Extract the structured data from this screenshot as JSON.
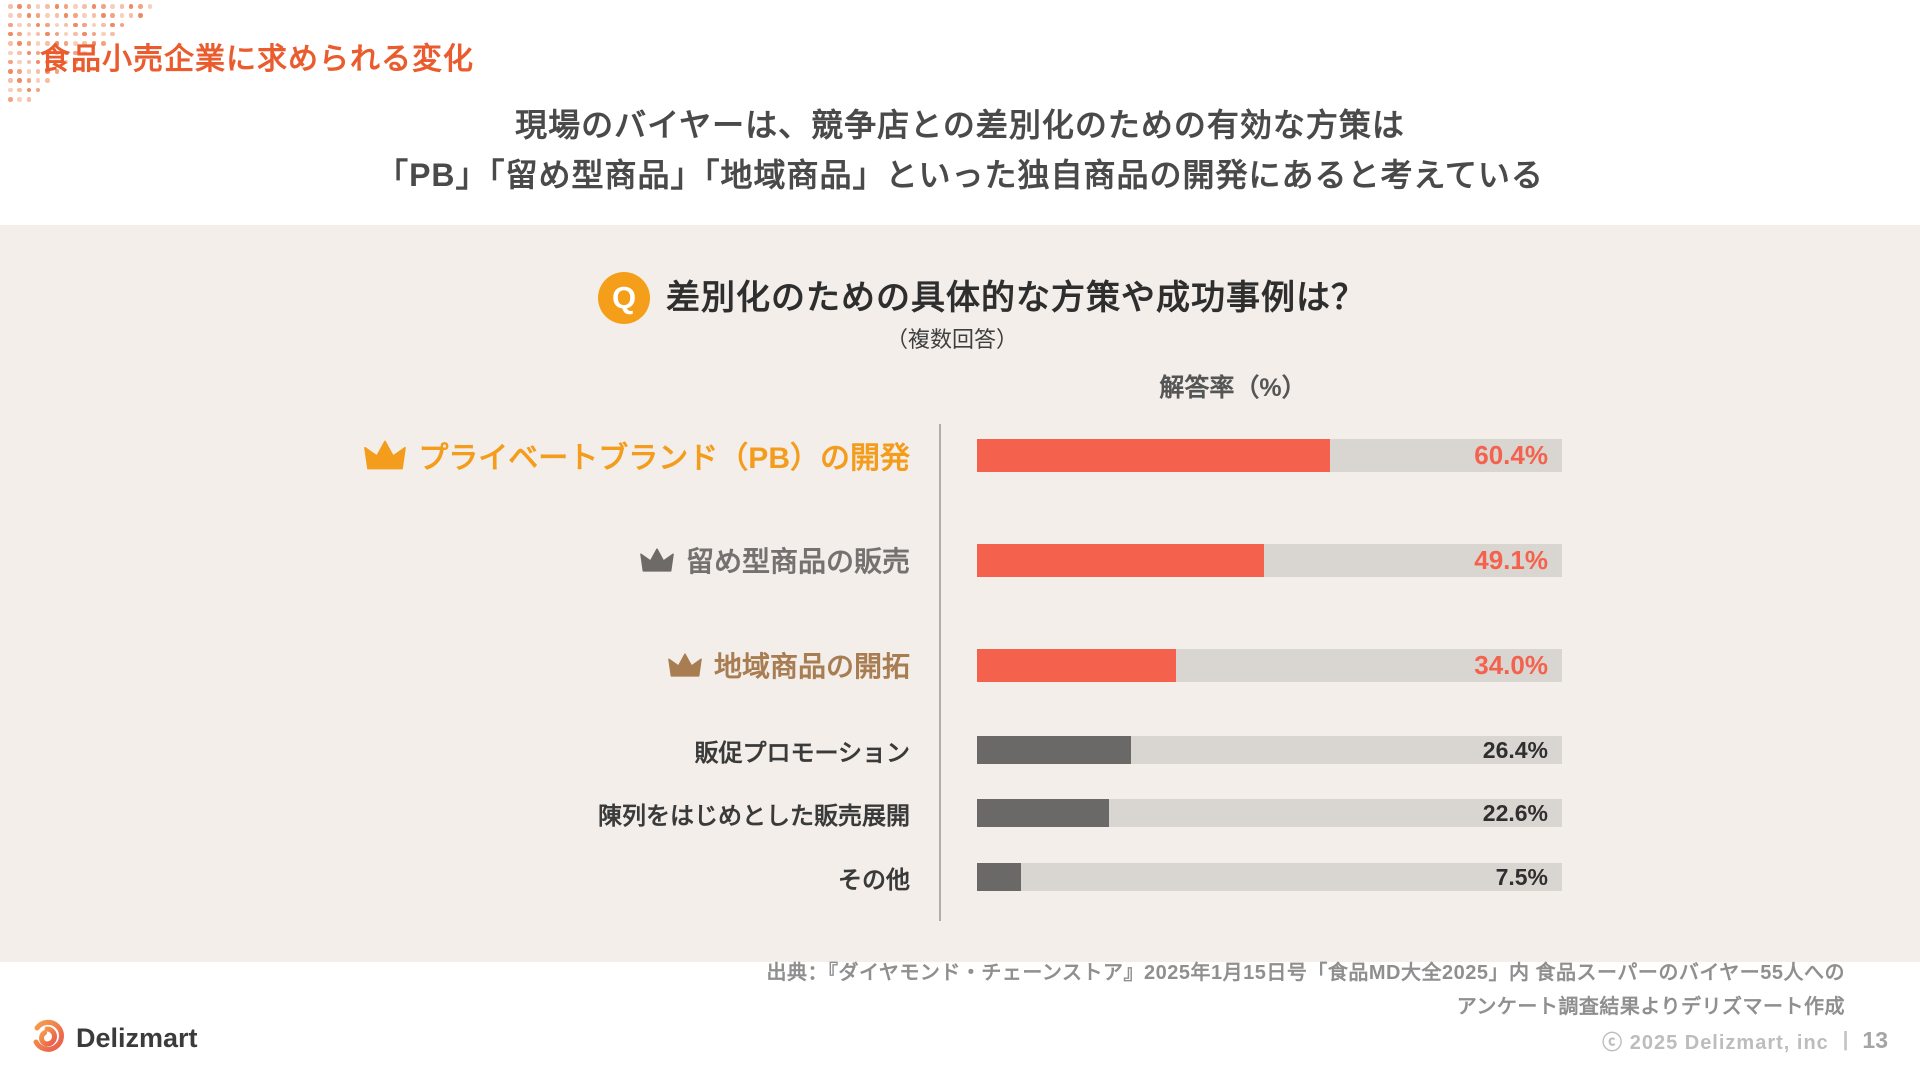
{
  "slide": {
    "kicker": "食品小売企業に求められる変化",
    "headline": [
      "現場のバイヤーは、競争店との差別化のための有効な方策は",
      "「PB」「留め型商品」「地域商品」といった独自商品の開発にあると考えている"
    ]
  },
  "question": {
    "badge": "Q",
    "text": "差別化のための具体的な方策や成功事例は？",
    "note": "（複数回答）"
  },
  "chart_data": {
    "type": "bar",
    "orientation": "horizontal",
    "title": "差別化のための具体的な方策や成功事例は？",
    "axis_label": "解答率（%）",
    "xlim": [
      0,
      100
    ],
    "grid": false,
    "categories": [
      "プライベートブランド（PB）の開発",
      "留め型商品の販売",
      "地域商品の開拓",
      "販促プロモーション",
      "陳列をはじめとした販売展開",
      "その他"
    ],
    "values": [
      60.4,
      49.1,
      34.0,
      26.4,
      22.6,
      7.5
    ],
    "track_color": "#D9D6D2",
    "rows": [
      {
        "label": "プライベートブランド（PB）の開発",
        "value": 60.4,
        "value_label": "60.4%",
        "crown": true,
        "rank": 1,
        "label_color": "#F49C1C",
        "crown_color": "#F49C1C",
        "bar_color": "#F4614D",
        "value_color": "#F4614D",
        "emphasis": true
      },
      {
        "label": "留め型商品の販売",
        "value": 49.1,
        "value_label": "49.1%",
        "crown": true,
        "rank": 2,
        "label_color": "#757170",
        "crown_color": "#6E6A68",
        "bar_color": "#F4614D",
        "value_color": "#F4614D",
        "emphasis": true
      },
      {
        "label": "地域商品の開拓",
        "value": 34.0,
        "value_label": "34.0%",
        "crown": true,
        "rank": 3,
        "label_color": "#A97D52",
        "crown_color": "#A97D52",
        "bar_color": "#F4614D",
        "value_color": "#F4614D",
        "emphasis": true
      },
      {
        "label": "販促プロモーション",
        "value": 26.4,
        "value_label": "26.4%",
        "crown": false,
        "label_color": "#3A3A3A",
        "crown_color": null,
        "bar_color": "#6B6968",
        "value_color": "#2F2F2F",
        "emphasis": false
      },
      {
        "label": "陳列をはじめとした販売展開",
        "value": 22.6,
        "value_label": "22.6%",
        "crown": false,
        "label_color": "#3A3A3A",
        "crown_color": null,
        "bar_color": "#6B6968",
        "value_color": "#2F2F2F",
        "emphasis": false
      },
      {
        "label": "その他",
        "value": 7.5,
        "value_label": "7.5%",
        "crown": false,
        "label_color": "#3A3A3A",
        "crown_color": null,
        "bar_color": "#6B6968",
        "value_color": "#2F2F2F",
        "emphasis": false
      }
    ]
  },
  "source": {
    "lines": [
      "出典：『ダイヤモンド・チェーンストア』2025年1月15日号「食品MD大全2025」内 食品スーパーのバイヤー55人への",
      "アンケート調査結果よりデリズマート作成"
    ]
  },
  "footer": {
    "brand": "Delizmart",
    "copyright": "ⓒ 2025 Delizmart, inc",
    "separator": "|",
    "page": "13"
  },
  "colors": {
    "accent_orange": "#EA5B2D",
    "panel_bg": "#F3EEE9",
    "q_badge": "#F59E19",
    "bar_red": "#F4614D",
    "bar_gray": "#6B6968",
    "track": "#D9D6D2"
  }
}
